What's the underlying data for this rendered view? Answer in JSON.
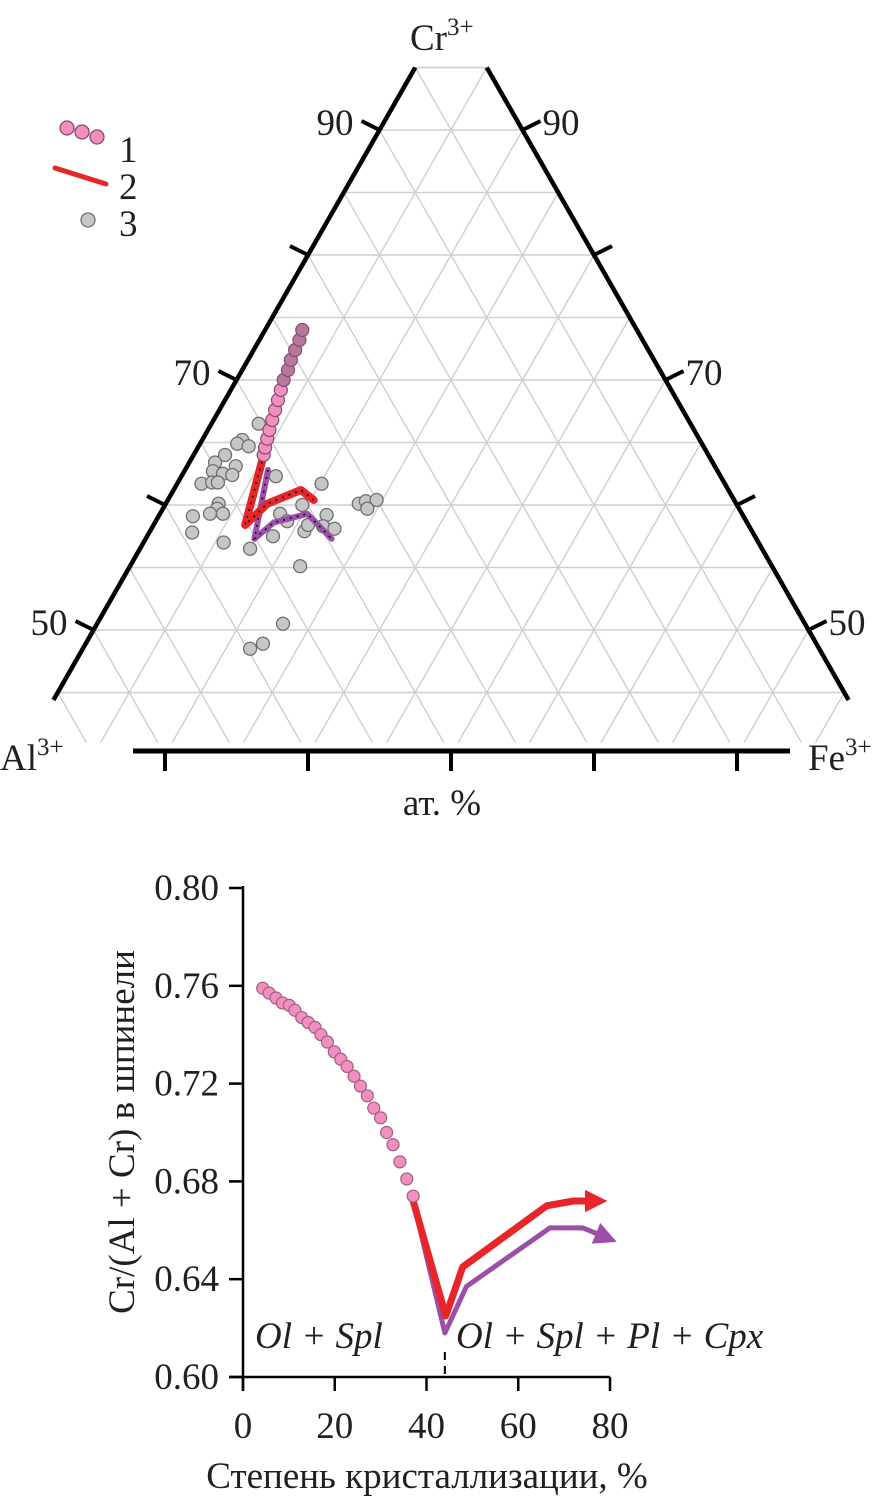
{
  "chart_data": [
    {
      "type": "ternary",
      "apex_labels": {
        "top": {
          "base": "Cr",
          "sup": "3+"
        },
        "left": {
          "base": "Al",
          "sup": "3+"
        },
        "right": {
          "base": "Fe",
          "sup": "3+"
        }
      },
      "unit_label": "ат. %",
      "cr_range": [
        41,
        95
      ],
      "grid_step": 5,
      "grid": true,
      "left_tick_labels": [
        "90",
        "70",
        "50"
      ],
      "right_tick_labels": [
        "90",
        "70",
        "50"
      ],
      "tick_values": [
        90,
        80,
        70,
        60,
        50
      ],
      "labeled_ticks": [
        90,
        70,
        50
      ],
      "legend": {
        "placement": "top-left",
        "entries": [
          {
            "label": "1",
            "kind": "pink-circles"
          },
          {
            "label": "2",
            "kind": "red-line"
          },
          {
            "label": "3",
            "kind": "grey-circle"
          }
        ]
      },
      "colors": {
        "series1": "#f08fc0",
        "series1_dark": "#8a4a6e",
        "red": "#e8262a",
        "purple": "#9a4fa8",
        "grey": "#c6c6c6"
      },
      "series": [
        {
          "name": "1",
          "columns": [
            "Cr",
            "Fe",
            "Al"
          ],
          "points": [
            [
              74.0,
              2.6,
              23.4
            ],
            [
              73.2,
              2.8,
              24.0
            ],
            [
              72.4,
              2.9,
              24.7
            ],
            [
              71.6,
              3.0,
              25.4
            ],
            [
              70.8,
              3.2,
              26.0
            ],
            [
              70.0,
              3.3,
              26.7
            ],
            [
              69.2,
              3.5,
              27.3
            ],
            [
              68.4,
              3.7,
              27.9
            ],
            [
              67.6,
              3.9,
              28.5
            ],
            [
              66.8,
              4.1,
              29.1
            ],
            [
              66.0,
              4.3,
              29.7
            ],
            [
              65.3,
              4.5,
              30.2
            ],
            [
              64.6,
              4.7,
              30.7
            ],
            [
              64.0,
              4.9,
              31.1
            ]
          ]
        },
        {
          "name": "2 (red)",
          "columns": [
            "Cr",
            "Fe",
            "Al"
          ],
          "points": [
            [
              64.0,
              4.9,
              31.1
            ],
            [
              58.4,
              6.4,
              35.2
            ],
            [
              60.1,
              7.1,
              32.8
            ],
            [
              61.2,
              8.9,
              29.9
            ],
            [
              60.4,
              10.2,
              29.4
            ]
          ]
        },
        {
          "name": "2 (purple)",
          "columns": [
            "Cr",
            "Fe",
            "Al"
          ],
          "points": [
            [
              62.8,
              5.8,
              31.4
            ],
            [
              57.3,
              7.6,
              35.1
            ],
            [
              58.6,
              8.3,
              33.1
            ],
            [
              59.3,
              10.3,
              30.4
            ],
            [
              57.3,
              13.0,
              29.7
            ]
          ]
        },
        {
          "name": "3",
          "columns": [
            "Cr",
            "Fe",
            "Al"
          ],
          "points": [
            [
              66.5,
              3.3,
              30.2
            ],
            [
              65.2,
              2.8,
              32.0
            ],
            [
              64.9,
              2.6,
              32.5
            ],
            [
              64.7,
              3.5,
              31.8
            ],
            [
              64.0,
              2.2,
              33.8
            ],
            [
              63.1,
              3.4,
              33.5
            ],
            [
              63.4,
              1.8,
              34.8
            ],
            [
              62.7,
              2.0,
              35.3
            ],
            [
              62.5,
              2.8,
              34.7
            ],
            [
              62.4,
              3.5,
              34.1
            ],
            [
              61.7,
              1.7,
              36.6
            ],
            [
              61.8,
              2.4,
              35.8
            ],
            [
              61.8,
              2.8,
              35.4
            ],
            [
              62.3,
              6.6,
              31.1
            ],
            [
              61.7,
              10.1,
              28.2
            ],
            [
              60.1,
              3.7,
              36.2
            ],
            [
              59.7,
              3.8,
              36.5
            ],
            [
              59.3,
              3.5,
              37.2
            ],
            [
              59.1,
              2.4,
              38.5
            ],
            [
              59.3,
              4.4,
              36.3
            ],
            [
              57.8,
              3.0,
              39.2
            ],
            [
              57.0,
              5.6,
              37.4
            ],
            [
              56.5,
              7.7,
              35.8
            ],
            [
              57.5,
              8.8,
              33.7
            ],
            [
              59.3,
              8.4,
              32.3
            ],
            [
              58.7,
              9.2,
              32.1
            ],
            [
              60.0,
              9.6,
              30.4
            ],
            [
              57.9,
              10.8,
              31.3
            ],
            [
              58.4,
              10.8,
              30.8
            ],
            [
              59.2,
              11.7,
              29.1
            ],
            [
              58.3,
              11.9,
              29.8
            ],
            [
              58.1,
              12.8,
              29.1
            ],
            [
              60.1,
              13.5,
              26.4
            ],
            [
              60.3,
              13.9,
              25.8
            ],
            [
              60.4,
              14.6,
              25.0
            ],
            [
              59.7,
              14.3,
              26.0
            ],
            [
              55.1,
              11.9,
              33.0
            ],
            [
              50.5,
              13.0,
              36.5
            ],
            [
              48.9,
              12.4,
              38.7
            ],
            [
              48.5,
              11.7,
              39.8
            ]
          ]
        }
      ]
    },
    {
      "type": "line",
      "xlabel": "Степень кристаллизации, %",
      "ylabel": "Cr/(Al + Cr) в шпинели",
      "xlim": [
        0,
        80
      ],
      "ylim": [
        0.6,
        0.8
      ],
      "x_ticks": [
        "0",
        "20",
        "40",
        "60",
        "80"
      ],
      "y_ticks": [
        "0.80",
        "0.76",
        "0.72",
        "0.68",
        "0.64",
        "0.60"
      ],
      "grid": false,
      "annotations": [
        {
          "text": "Ol + Spl",
          "x": 3,
          "y": 0.61
        },
        {
          "text": "Ol + Spl + Pl + Cpx",
          "x": 46,
          "y": 0.61
        }
      ],
      "divider_x": 44,
      "series": [
        {
          "name": "1",
          "kind": "scatter",
          "x": [
            4.3,
            5.7,
            7.2,
            8.6,
            10.1,
            11.3,
            12.8,
            14.2,
            15.7,
            17.0,
            18.4,
            19.9,
            21.3,
            22.7,
            24.2,
            25.6,
            27.1,
            28.5,
            30.0,
            31.3,
            32.7,
            34.2,
            35.7,
            37.1
          ],
          "y": [
            0.759,
            0.757,
            0.755,
            0.753,
            0.752,
            0.75,
            0.747,
            0.745,
            0.743,
            0.74,
            0.737,
            0.733,
            0.73,
            0.727,
            0.723,
            0.719,
            0.715,
            0.71,
            0.706,
            0.7,
            0.695,
            0.688,
            0.681,
            0.674
          ]
        },
        {
          "name": "2 (red)",
          "kind": "line",
          "x": [
            37.1,
            44.2,
            47.9,
            66.2,
            72.0,
            77.0
          ],
          "y": [
            0.672,
            0.625,
            0.645,
            0.67,
            0.672,
            0.672
          ]
        },
        {
          "name": "2 (purple)",
          "kind": "line",
          "x": [
            37.1,
            44.0,
            48.7,
            66.9,
            74.1,
            79.2
          ],
          "y": [
            0.672,
            0.618,
            0.637,
            0.661,
            0.661,
            0.657
          ]
        }
      ]
    }
  ]
}
